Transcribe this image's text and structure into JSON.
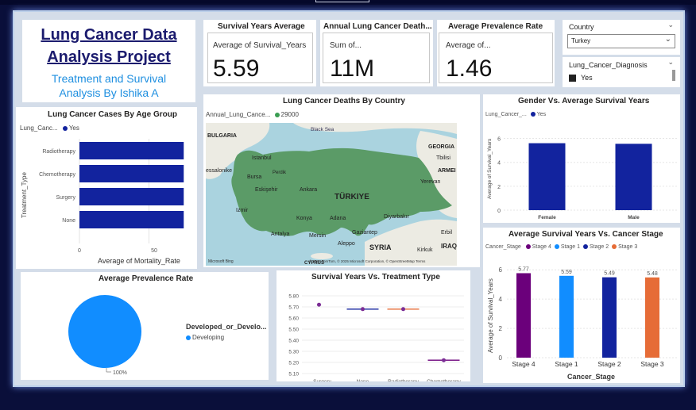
{
  "title": {
    "line1": "Lung Cancer Data",
    "line2": "Analysis Project",
    "sub1": "Treatment and Survival",
    "sub2": "Analysis By Ishika A"
  },
  "kpis": [
    {
      "header": "Survival Years Average",
      "label": "Average of Survival_Years",
      "value": "5.59"
    },
    {
      "header": "Annual Lung Cancer Death...",
      "label": "Sum of...",
      "value": "11M"
    },
    {
      "header": "Average Prevalence Rate",
      "label": "Average of...",
      "value": "1.46"
    }
  ],
  "slicers": {
    "country": {
      "label": "Country",
      "value": "Turkey"
    },
    "diagnosis": {
      "label": "Lung_Cancer_Diagnosis",
      "option": "Yes"
    }
  },
  "colors": {
    "navy": "#12239e",
    "stage4": "#6b007b",
    "stage1": "#118dff",
    "stage2": "#12239e",
    "stage3": "#e66c37",
    "map_land": "#5b9b67"
  },
  "age_chart": {
    "title": "Lung Cancer Cases By Age Group",
    "legend_name": "Lung_Canc...",
    "legend_item": "Yes",
    "ylabel": "Treatment_Type",
    "xlabel": "Average of Mortality_Rate",
    "ticks": [
      "0",
      "50"
    ]
  },
  "map": {
    "title": "Lung Cancer Deaths By Country",
    "legend_name": "Annual_Lung_Cance...",
    "legend_item": "29000",
    "country_label": "TÜRKIYE",
    "labels": [
      "Black Sea",
      "BULGARIA",
      "GEORGIA",
      "Tbilisi",
      "ARMEI",
      "Yerevan",
      "essalonike",
      "Istanbul",
      "Perdik",
      "Bursa",
      "Eskişehir",
      "Ankara",
      "Izmir",
      "Konya",
      "Adana",
      "Diyarbakır",
      "Antalya",
      "Mersin",
      "Aleppo",
      "Gaziantep",
      "SYRIA",
      "Erbil",
      "IRAQ",
      "Kirkuk",
      "CYPRUS",
      "LEBANON"
    ],
    "brand": "Microsoft Bing",
    "copyright": "© 2025 TomTom, © 2025 Microsoft Corporation, © OpenStreetMap  Terms"
  },
  "gender_chart": {
    "title": "Gender Vs. Average Survival Years",
    "legend_name": "Lung_Cancer_...",
    "legend_item": "Yes",
    "ylabel": "Average of Survival_Years",
    "yticks": [
      "0",
      "2",
      "4",
      "6"
    ]
  },
  "stage_chart": {
    "title": "Average Survival Years Vs. Cancer Stage",
    "legend_name": "Cancer_Stage",
    "ylabel": "Average of Survival_Years",
    "xlabel": "Cancer_Stage",
    "yticks": [
      "0",
      "2",
      "4",
      "6"
    ]
  },
  "prevalence_chart": {
    "title": "Average Prevalence Rate",
    "legend_name": "Developed_or_Develo...",
    "legend_item": "Developing",
    "slice_label": "100%"
  },
  "treatment_chart": {
    "title": "Survival Years Vs. Treatment Type",
    "yticks": [
      "5.80",
      "5.70",
      "5.60",
      "5.50",
      "5.40",
      "5.30",
      "5.20",
      "5.10"
    ]
  },
  "chart_data": [
    {
      "type": "bar",
      "title": "Lung Cancer Cases By Age Group",
      "orientation": "horizontal",
      "categories": [
        "Radiotherapy",
        "Chemotherapy",
        "Surgery",
        "None"
      ],
      "series": [
        {
          "name": "Yes",
          "values": [
            75,
            75,
            75,
            75
          ]
        }
      ],
      "xlabel": "Average of Mortality_Rate",
      "ylabel": "Treatment_Type",
      "xlim": [
        0,
        80
      ]
    },
    {
      "type": "bar",
      "title": "Gender Vs. Average Survival Years",
      "categories": [
        "Female",
        "Male"
      ],
      "series": [
        {
          "name": "Yes",
          "values": [
            5.6,
            5.55
          ]
        }
      ],
      "ylabel": "Average of Survival_Years",
      "ylim": [
        0,
        6.5
      ]
    },
    {
      "type": "bar",
      "title": "Average Survival Years Vs. Cancer Stage",
      "categories": [
        "Stage 4",
        "Stage 1",
        "Stage 2",
        "Stage 3"
      ],
      "series": [
        {
          "name": "Stage 4",
          "values": [
            5.77,
            null,
            null,
            null
          ]
        },
        {
          "name": "Stage 1",
          "values": [
            null,
            5.59,
            null,
            null
          ]
        },
        {
          "name": "Stage 2",
          "values": [
            null,
            null,
            5.49,
            null
          ]
        },
        {
          "name": "Stage 3",
          "values": [
            null,
            null,
            null,
            5.48
          ]
        }
      ],
      "labels": [
        "5.77",
        "5.59",
        "5.49",
        "5.48"
      ],
      "xlabel": "Cancer_Stage",
      "ylabel": "Average of Survival_Years",
      "ylim": [
        0,
        6.5
      ]
    },
    {
      "type": "pie",
      "title": "Average Prevalence Rate",
      "categories": [
        "Developing"
      ],
      "values": [
        100
      ],
      "labels": [
        "100%"
      ]
    },
    {
      "type": "scatter",
      "title": "Survival Years Vs. Treatment Type",
      "categories": [
        "Surgery",
        "None",
        "Radiotherapy",
        "Chemotherapy"
      ],
      "values": [
        5.72,
        5.68,
        5.68,
        5.22
      ],
      "ylim": [
        5.1,
        5.8
      ]
    }
  ]
}
